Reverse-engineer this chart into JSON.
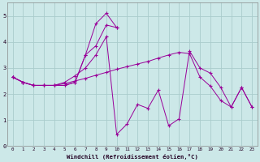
{
  "bg_color": "#cce8e8",
  "line_color": "#990099",
  "grid_color": "#aacccc",
  "xlabel": "Windchill (Refroidissement éolien,°C)",
  "xlim": [
    0,
    23
  ],
  "ylim": [
    0,
    5.5
  ],
  "figsize": [
    3.2,
    2.0
  ],
  "dpi": 100,
  "s1_x": [
    0,
    1,
    2,
    3,
    4,
    5,
    6,
    7,
    8,
    9,
    10
  ],
  "s1_y": [
    2.65,
    2.45,
    2.33,
    2.33,
    2.33,
    2.33,
    2.45,
    3.5,
    3.85,
    4.65,
    4.55
  ],
  "s2_x": [
    0,
    1,
    2,
    3,
    4,
    5,
    6,
    7,
    8,
    9,
    10
  ],
  "s2_y": [
    2.65,
    2.45,
    2.33,
    2.33,
    2.33,
    2.33,
    2.45,
    3.5,
    4.7,
    5.1,
    4.55
  ],
  "s3_x": [
    0,
    1,
    2,
    3,
    4,
    5,
    6,
    7,
    8,
    9,
    10,
    11,
    12,
    13,
    14,
    15,
    16,
    17,
    18,
    19,
    20,
    21,
    22,
    23
  ],
  "s3_y": [
    2.65,
    2.45,
    2.33,
    2.33,
    2.33,
    2.45,
    2.7,
    3.0,
    3.5,
    4.2,
    0.45,
    0.85,
    1.6,
    1.45,
    2.15,
    0.78,
    1.05,
    3.65,
    3.0,
    2.8,
    2.25,
    1.5,
    2.25,
    1.5
  ],
  "s4_x": [
    0,
    1,
    2,
    3,
    4,
    5,
    6,
    7,
    8,
    9,
    10,
    11,
    12,
    13,
    14,
    15,
    16,
    17,
    18,
    19,
    20,
    21,
    22,
    23
  ],
  "s4_y": [
    2.65,
    2.45,
    2.33,
    2.33,
    2.33,
    2.4,
    2.5,
    2.6,
    2.72,
    2.83,
    2.95,
    3.05,
    3.15,
    3.25,
    3.38,
    3.5,
    3.6,
    3.55,
    2.65,
    2.3,
    1.75,
    1.5,
    2.25,
    1.5
  ]
}
